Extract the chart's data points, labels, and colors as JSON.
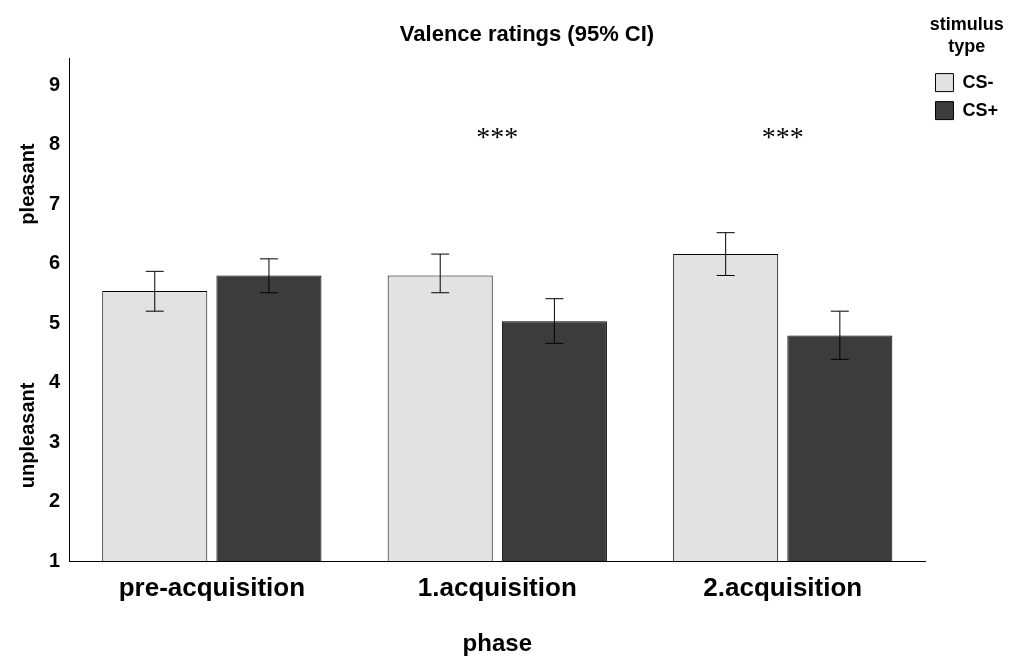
{
  "chart_data": {
    "type": "bar",
    "title": "Valence ratings (95% CI)",
    "xlabel": "phase",
    "legend_title": "stimulus type",
    "categories": [
      "pre-acquisition",
      "1.acquisition",
      "2.acquisition"
    ],
    "series": [
      {
        "name": "CS-",
        "color": "#e2e2e2",
        "values": [
          5.54,
          5.8,
          6.16
        ],
        "errors": [
          [
            5.2,
            5.87
          ],
          [
            5.51,
            6.16
          ],
          [
            5.8,
            6.52
          ]
        ]
      },
      {
        "name": "CS+",
        "color": "#3c3c3c",
        "values": [
          5.8,
          5.03,
          4.79
        ],
        "errors": [
          [
            5.51,
            6.08
          ],
          [
            4.66,
            5.41
          ],
          [
            4.39,
            5.2
          ]
        ]
      }
    ],
    "ylim": [
      1,
      9.45
    ],
    "yticks": [
      1,
      2,
      3,
      4,
      5,
      6,
      7,
      8,
      9
    ],
    "grid": false,
    "legend": "top right",
    "annotations": [
      "pleasant",
      "unpleasant",
      "***",
      "***"
    ]
  }
}
